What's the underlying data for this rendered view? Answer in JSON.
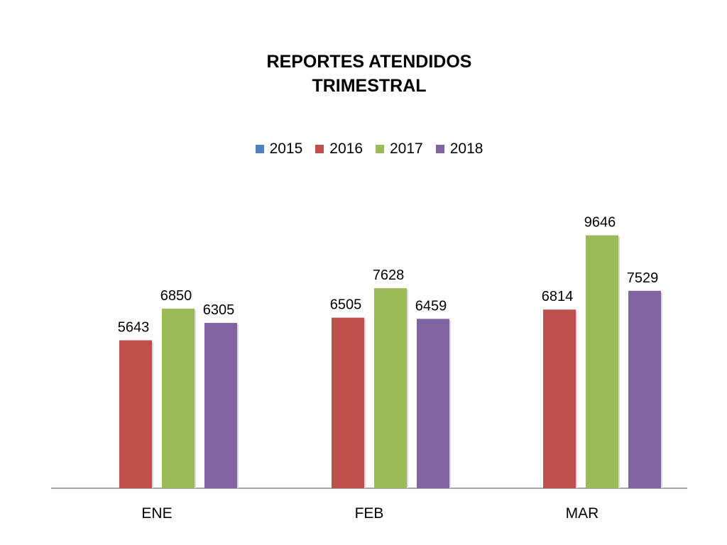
{
  "chart_data": {
    "type": "bar",
    "title_lines": [
      "REPORTES ATENDIDOS",
      "TRIMESTRAL"
    ],
    "categories": [
      "ENE",
      "FEB",
      "MAR"
    ],
    "series": [
      {
        "name": "2015",
        "color": "#4F81BD",
        "values": [
          null,
          null,
          null
        ]
      },
      {
        "name": "2016",
        "color": "#C0504D",
        "values": [
          5643,
          6505,
          6814
        ]
      },
      {
        "name": "2017",
        "color": "#9BBB59",
        "values": [
          6850,
          7628,
          9646
        ]
      },
      {
        "name": "2018",
        "color": "#8064A2",
        "values": [
          6305,
          6459,
          7529
        ]
      }
    ],
    "legend_position": "top",
    "grid": false,
    "data_labels": true
  }
}
